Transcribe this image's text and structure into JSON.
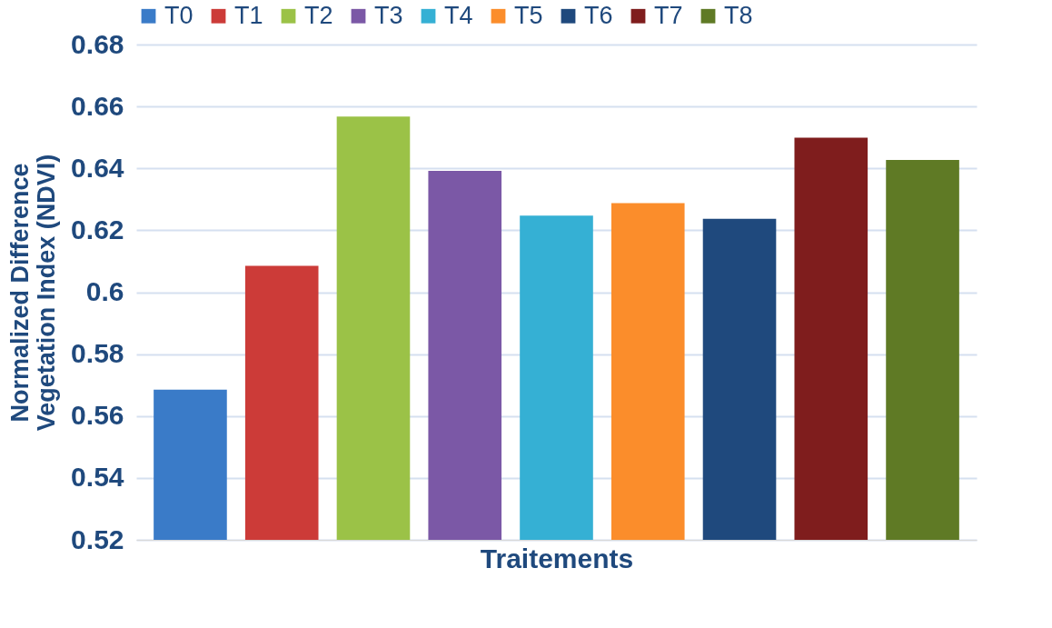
{
  "chart_data": {
    "type": "bar",
    "xlabel": "Traitements",
    "ylabel": "Normalized Difference Vegetation Index (NDVI)",
    "categories": [
      null
    ],
    "series": [
      {
        "name": "T0",
        "color": "#3a7bc8",
        "values": [
          0.5685
        ]
      },
      {
        "name": "T1",
        "color": "#cc3b38",
        "values": [
          0.6085
        ]
      },
      {
        "name": "T2",
        "color": "#9bc247",
        "values": [
          0.6567
        ]
      },
      {
        "name": "T3",
        "color": "#7b58a6",
        "values": [
          0.6392
        ]
      },
      {
        "name": "T4",
        "color": "#35b0d4",
        "values": [
          0.6247
        ]
      },
      {
        "name": "T5",
        "color": "#fb8d2b",
        "values": [
          0.6288
        ]
      },
      {
        "name": "T6",
        "color": "#1f497d",
        "values": [
          0.6237
        ]
      },
      {
        "name": "T7",
        "color": "#7f1d1d",
        "values": [
          0.6499
        ]
      },
      {
        "name": "T8",
        "color": "#5f7a25",
        "values": [
          0.6427
        ]
      }
    ],
    "ylim": [
      0.52,
      0.68
    ],
    "yticks": [
      0.52,
      0.54,
      0.56,
      0.58,
      0.6,
      0.62,
      0.64,
      0.66,
      0.68
    ],
    "grid": "y",
    "legend": "top",
    "tick_labels": "y"
  }
}
